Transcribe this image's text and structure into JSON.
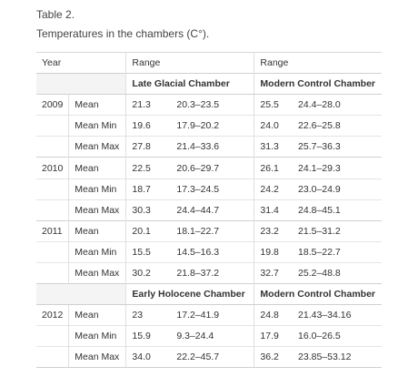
{
  "caption": {
    "label": "Table 2.",
    "title": "Temperatures in the chambers (C°)."
  },
  "header": {
    "year": "Year",
    "range1": "Range",
    "range2": "Range"
  },
  "chambers_first": {
    "left": "Late Glacial Chamber",
    "right": "Modern Control Chamber"
  },
  "chambers_second": {
    "left": "Early Holocene Chamber",
    "right": "Modern Control Chamber"
  },
  "rows": [
    {
      "year": "2009",
      "stat": "Mean",
      "a_mean": "21.3",
      "a_range": "20.3–23.5",
      "b_mean": "25.5",
      "b_range": "24.4–28.0"
    },
    {
      "year": "",
      "stat": "Mean Min",
      "a_mean": "19.6",
      "a_range": "17.9–20.2",
      "b_mean": "24.0",
      "b_range": "22.6–25.8"
    },
    {
      "year": "",
      "stat": "Mean Max",
      "a_mean": "27.8",
      "a_range": "21.4–33.6",
      "b_mean": "31.3",
      "b_range": "25.7–36.3"
    },
    {
      "year": "2010",
      "stat": "Mean",
      "a_mean": "22.5",
      "a_range": "20.6–29.7",
      "b_mean": "26.1",
      "b_range": "24.1–29.3"
    },
    {
      "year": "",
      "stat": "Mean Min",
      "a_mean": "18.7",
      "a_range": "17.3–24.5",
      "b_mean": "24.2",
      "b_range": "23.0–24.9"
    },
    {
      "year": "",
      "stat": "Mean Max",
      "a_mean": "30.3",
      "a_range": "24.4–44.7",
      "b_mean": "31.4",
      "b_range": "24.8–45.1"
    },
    {
      "year": "2011",
      "stat": "Mean",
      "a_mean": "20.1",
      "a_range": "18.1–22.7",
      "b_mean": "23.2",
      "b_range": "21.5–31.2"
    },
    {
      "year": "",
      "stat": "Mean Min",
      "a_mean": "15.5",
      "a_range": "14.5–16.3",
      "b_mean": "19.8",
      "b_range": "18.5–22.7"
    },
    {
      "year": "",
      "stat": "Mean Max",
      "a_mean": "30.2",
      "a_range": "21.8–37.2",
      "b_mean": "32.7",
      "b_range": "25.2–48.8"
    },
    {
      "year": "2012",
      "stat": "Mean",
      "a_mean": "23",
      "a_range": "17.2–41.9",
      "b_mean": "24.8",
      "b_range": "21.43–34.16"
    },
    {
      "year": "",
      "stat": "Mean Min",
      "a_mean": "15.9",
      "a_range": "9.3–24.4",
      "b_mean": "17.9",
      "b_range": "16.0–26.5"
    },
    {
      "year": "",
      "stat": "Mean Max",
      "a_mean": "34.0",
      "a_range": "22.2–45.7",
      "b_mean": "36.2",
      "b_range": "23.85–53.12"
    }
  ]
}
